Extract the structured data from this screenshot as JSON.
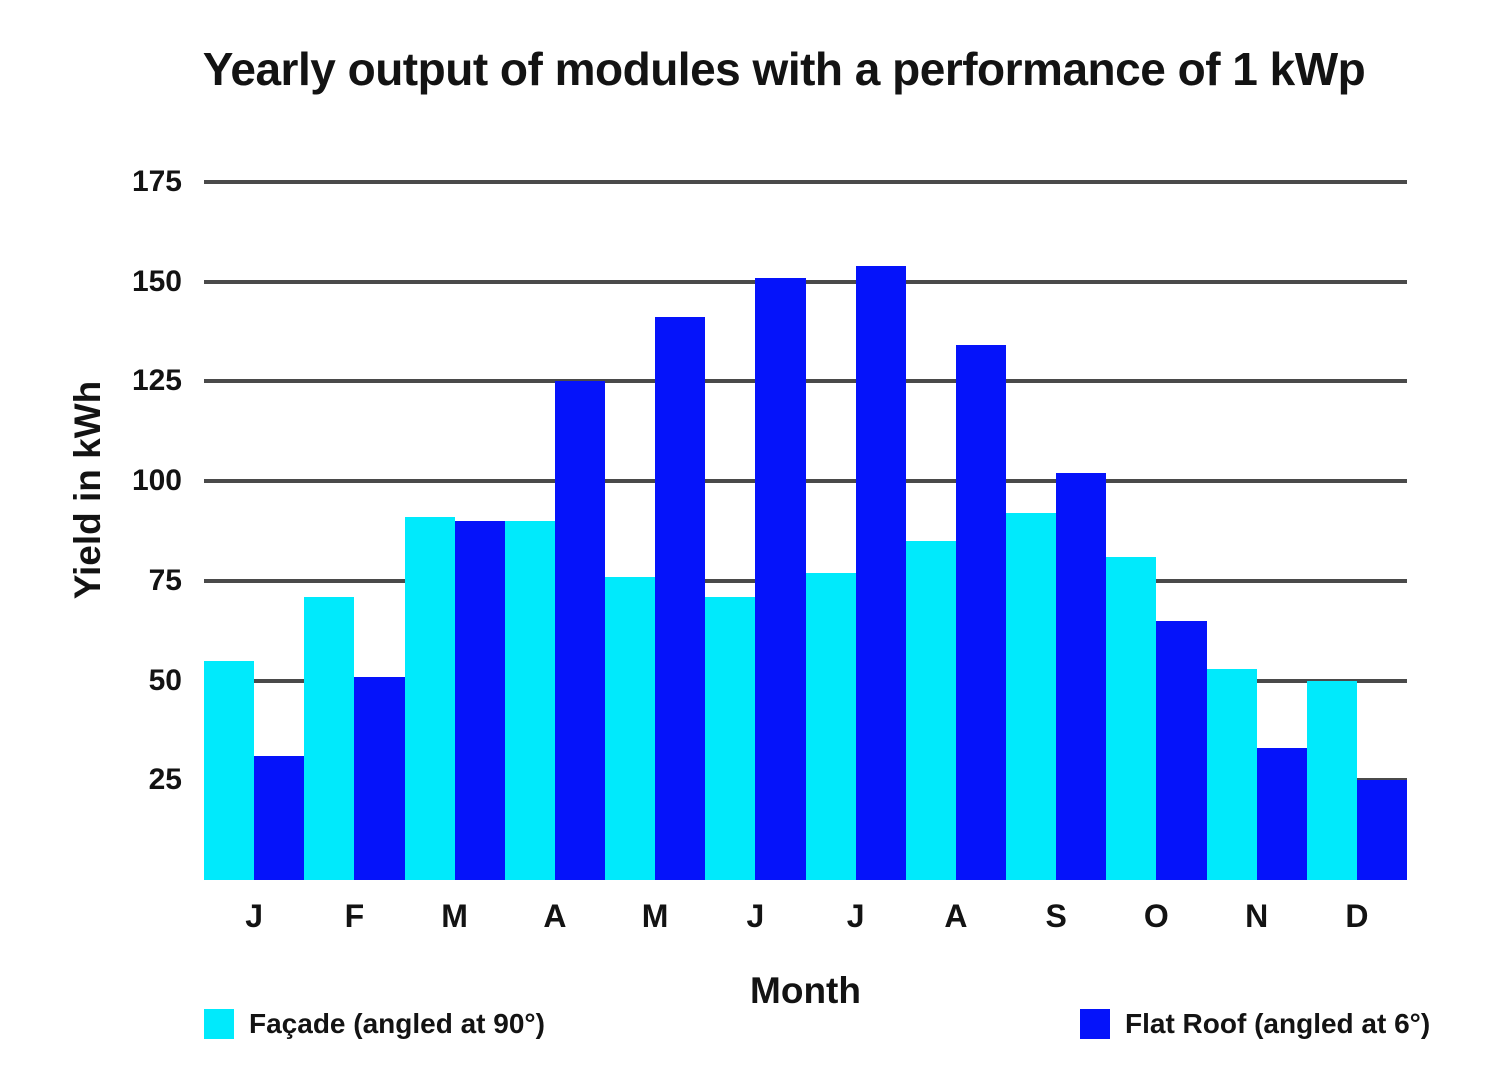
{
  "chart": {
    "title": "Yearly output of modules with a performance of 1 kWp",
    "y_axis_title": "Yield in kWh",
    "x_axis_title": "Month"
  },
  "chart_data": {
    "type": "bar",
    "bar_mode": "grouped",
    "title": "Yearly output of modules with a performance of 1 kWp",
    "xlabel": "Month",
    "ylabel": "Yield in kWh",
    "categories": [
      "J",
      "F",
      "M",
      "A",
      "M",
      "J",
      "J",
      "A",
      "S",
      "O",
      "N",
      "D"
    ],
    "series": [
      {
        "name": "Façade (angled at 90°)",
        "color": "#00eafc",
        "values": [
          55,
          71,
          91,
          90,
          76,
          71,
          77,
          85,
          92,
          81,
          53,
          50
        ]
      },
      {
        "name": "Flat Roof (angled at 6°)",
        "color": "#0513fa",
        "values": [
          31,
          51,
          90,
          125,
          141,
          151,
          154,
          134,
          102,
          65,
          33,
          25
        ]
      }
    ],
    "yticks": [
      25,
      50,
      75,
      100,
      125,
      150,
      175
    ],
    "ylim": [
      0,
      175
    ],
    "grid": "horizontal",
    "legend_position": "bottom"
  },
  "colors": {
    "grid": "#4a4a4a",
    "text": "#131313",
    "background": "#ffffff"
  }
}
